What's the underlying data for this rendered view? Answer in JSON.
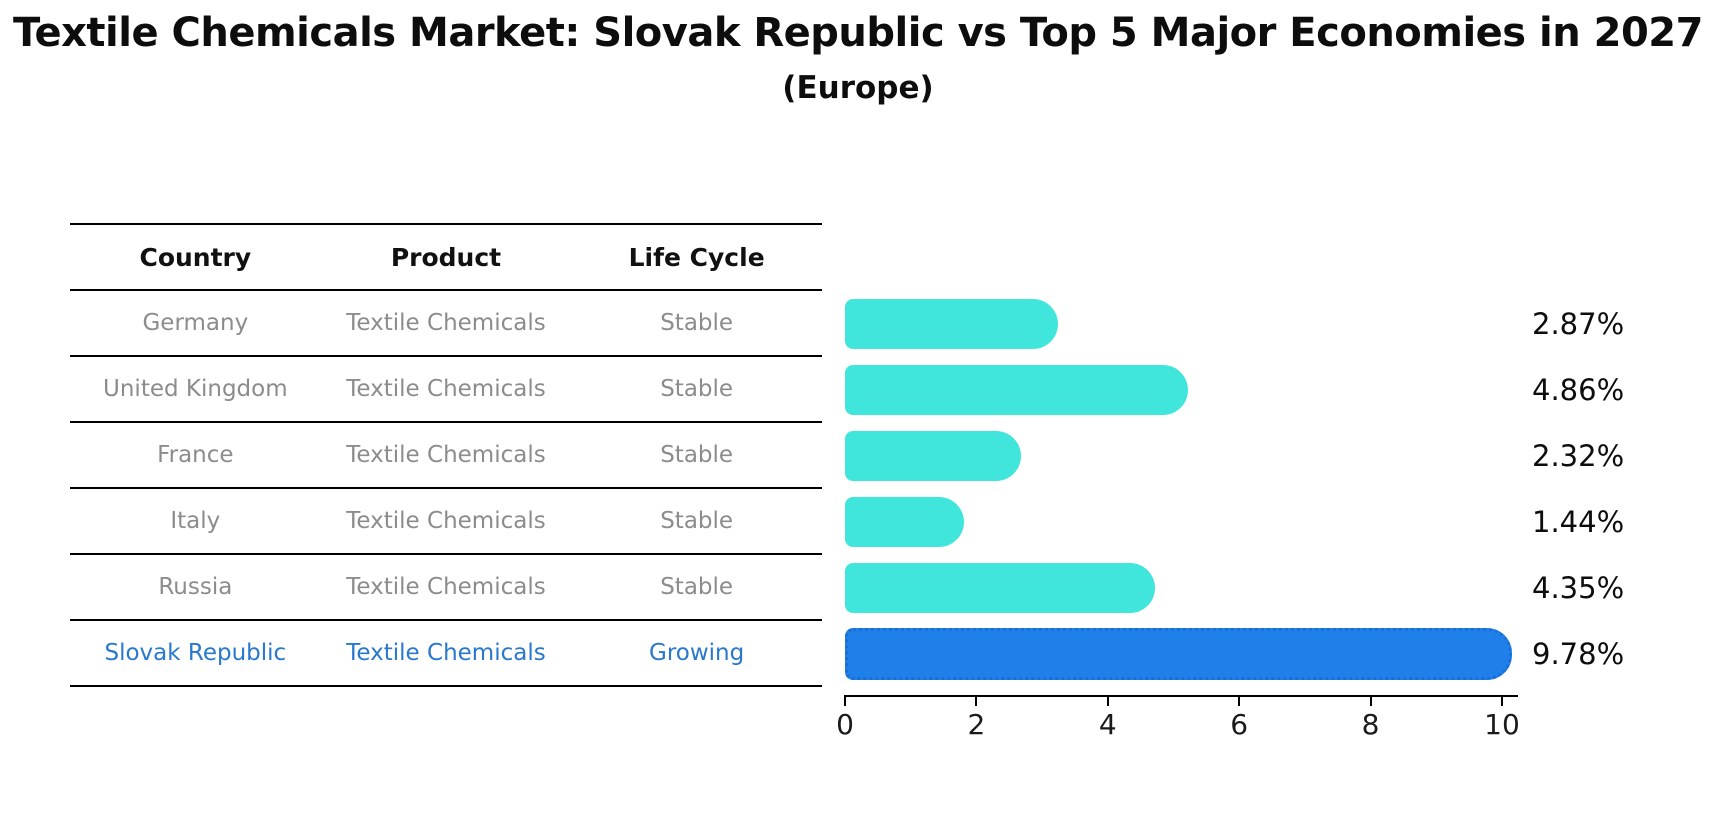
{
  "header": {
    "title": "Textile Chemicals Market: Slovak Republic vs Top 5 Major Economies in 2027",
    "subtitle": "(Europe)"
  },
  "table": {
    "headers": [
      "Country",
      "Product",
      "Life Cycle"
    ],
    "rows": [
      {
        "country": "Germany",
        "product": "Textile Chemicals",
        "life_cycle": "Stable",
        "highlight": false
      },
      {
        "country": "United Kingdom",
        "product": "Textile Chemicals",
        "life_cycle": "Stable",
        "highlight": false
      },
      {
        "country": "France",
        "product": "Textile Chemicals",
        "life_cycle": "Stable",
        "highlight": false
      },
      {
        "country": "Italy",
        "product": "Textile Chemicals",
        "life_cycle": "Stable",
        "highlight": false
      },
      {
        "country": "Russia",
        "product": "Textile Chemicals",
        "life_cycle": "Stable",
        "highlight": false
      },
      {
        "country": "Slovak Republic",
        "product": "Textile Chemicals",
        "life_cycle": "Growing",
        "highlight": true
      }
    ],
    "text_color": "#8c8c8c",
    "highlight_text_color": "#2878ce"
  },
  "chart_data": {
    "type": "bar",
    "orientation": "horizontal",
    "title": "Textile Chemicals Market: Slovak Republic vs Top 5 Major Economies in 2027",
    "subtitle": "(Europe)",
    "categories": [
      "Germany",
      "United Kingdom",
      "France",
      "Italy",
      "Russia",
      "Slovak Republic"
    ],
    "values": [
      2.87,
      4.86,
      2.32,
      1.44,
      4.35,
      9.78
    ],
    "value_labels": [
      "2.87%",
      "4.86%",
      "2.32%",
      "1.44%",
      "4.35%",
      "9.78%"
    ],
    "xlabel": "",
    "ylabel": "",
    "xlim": [
      0,
      10
    ],
    "xticks": [
      0,
      2,
      4,
      6,
      8,
      10
    ],
    "grid": false,
    "legend": false,
    "highlight_index": 5,
    "bar_color": "#40e5dc",
    "highlight_color": "#1e80e8",
    "highlight_edge_color": "#1a6fd6"
  }
}
